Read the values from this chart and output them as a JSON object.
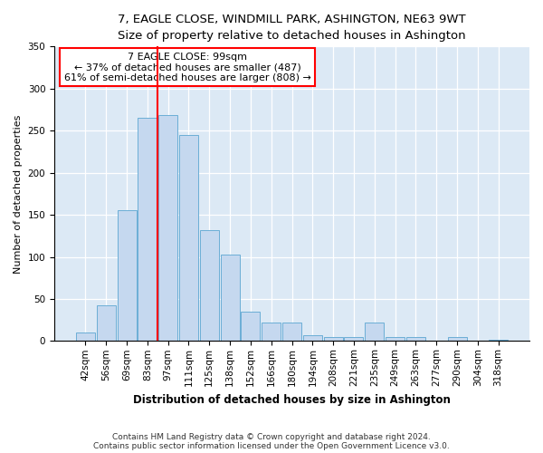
{
  "title": "7, EAGLE CLOSE, WINDMILL PARK, ASHINGTON, NE63 9WT",
  "subtitle": "Size of property relative to detached houses in Ashington",
  "xlabel": "Distribution of detached houses by size in Ashington",
  "ylabel": "Number of detached properties",
  "bar_labels": [
    "42sqm",
    "56sqm",
    "69sqm",
    "83sqm",
    "97sqm",
    "111sqm",
    "125sqm",
    "138sqm",
    "152sqm",
    "166sqm",
    "180sqm",
    "194sqm",
    "208sqm",
    "221sqm",
    "235sqm",
    "249sqm",
    "263sqm",
    "277sqm",
    "290sqm",
    "304sqm",
    "318sqm"
  ],
  "bar_values": [
    10,
    42,
    155,
    265,
    268,
    245,
    132,
    103,
    35,
    22,
    22,
    7,
    5,
    5,
    22,
    5,
    5,
    0,
    5,
    0,
    2
  ],
  "bar_color": "#c5d8ef",
  "bar_edge_color": "#6baed6",
  "vline_color": "red",
  "vline_position": 4.0,
  "annotation_title": "7 EAGLE CLOSE: 99sqm",
  "annotation_line1": "← 37% of detached houses are smaller (487)",
  "annotation_line2": "61% of semi-detached houses are larger (808) →",
  "annotation_box_color": "white",
  "annotation_box_edge": "red",
  "ylim": [
    0,
    350
  ],
  "yticks": [
    0,
    50,
    100,
    150,
    200,
    250,
    300,
    350
  ],
  "footer1": "Contains HM Land Registry data © Crown copyright and database right 2024.",
  "footer2": "Contains public sector information licensed under the Open Government Licence v3.0.",
  "background_color": "#dce9f5",
  "plot_background": "white",
  "title_fontsize": 9.5,
  "subtitle_fontsize": 8.5,
  "xlabel_fontsize": 8.5,
  "ylabel_fontsize": 8.0,
  "tick_fontsize": 7.5,
  "footer_fontsize": 6.5,
  "annot_fontsize": 8.0
}
